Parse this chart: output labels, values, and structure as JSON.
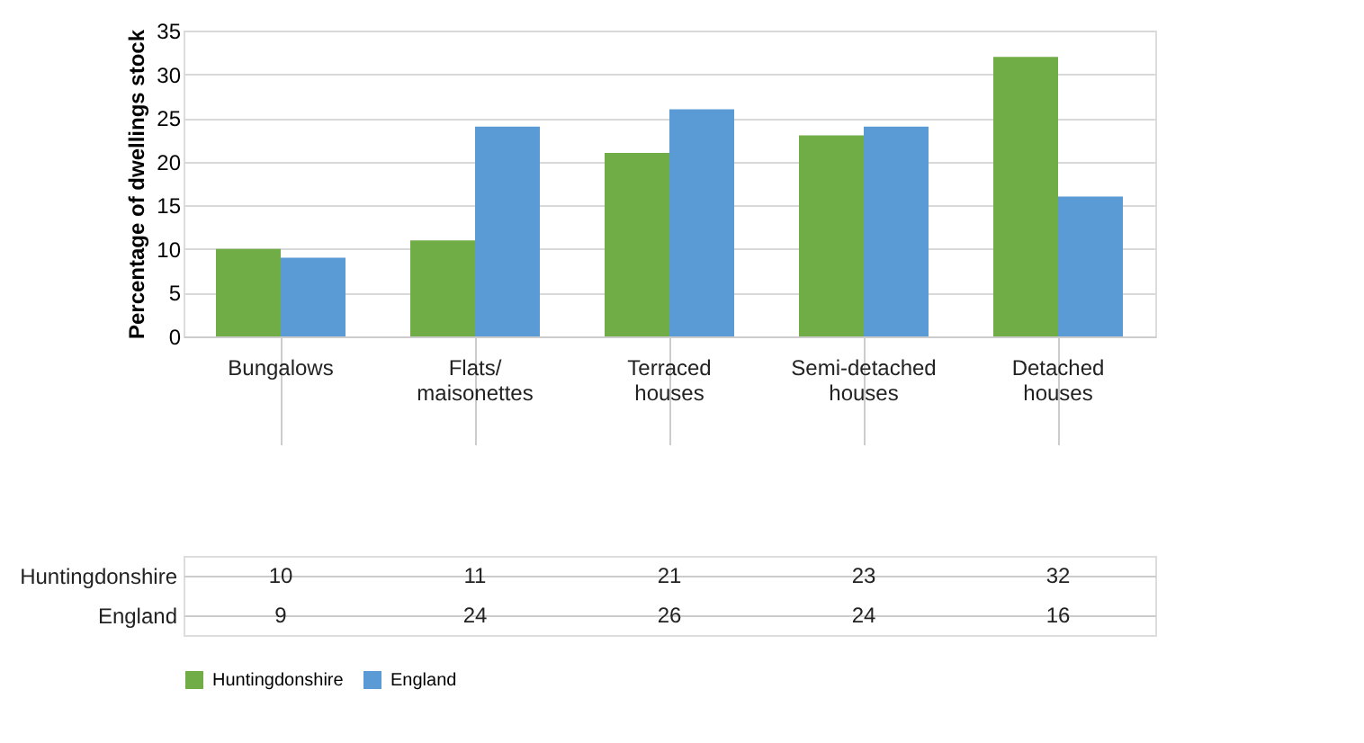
{
  "chart_data": {
    "type": "bar",
    "ylabel": "Percentage of dwellings stock",
    "categories": [
      "Bungalows",
      "Flats/ maisonettes",
      "Terraced houses",
      "Semi-detached houses",
      "Detached houses"
    ],
    "series": [
      {
        "name": "Huntingdonshire",
        "color": "#70ad47",
        "values": [
          10,
          11,
          21,
          23,
          32
        ]
      },
      {
        "name": "England",
        "color": "#5b9bd5",
        "values": [
          9,
          24,
          26,
          24,
          16
        ]
      }
    ],
    "ylim": [
      0,
      35
    ],
    "yticks": [
      0,
      5,
      10,
      15,
      20,
      25,
      30,
      35
    ],
    "grid": "y",
    "legend": "bottom",
    "data_labels": true
  }
}
